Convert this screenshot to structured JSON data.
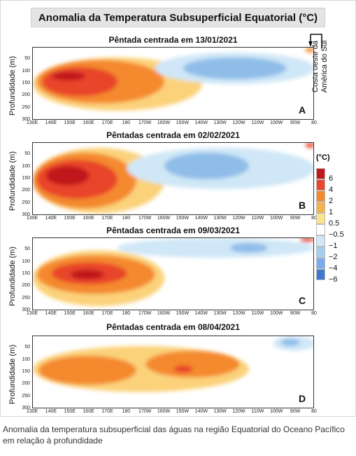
{
  "figure": {
    "title": "Anomalia da Temperatura Subsuperficial Equatorial (°C)",
    "ylabel": "Profundidade (m)",
    "coast_note_line1": "Costa oeste da",
    "coast_note_line2": "América do Sul",
    "caption": "Anomalia da temperatura subsuperficial das águas na região Equatorial do Oceano Pacífico em relação à profundidade"
  },
  "legend": {
    "unit": "(°C)",
    "labels": [
      "6",
      "4",
      "2",
      "1",
      "0.5",
      "−0.5",
      "−1",
      "−2",
      "−4",
      "−6"
    ],
    "colors": [
      "#c0181b",
      "#e8452a",
      "#f4892e",
      "#f8b24a",
      "#fbe38a",
      "#ffffff",
      "#cfe7f7",
      "#a5cdef",
      "#78acea",
      "#3f77d3"
    ]
  },
  "chart_data": [
    {
      "type": "heatmap",
      "title": "Pêntada centrada em 13/01/2021",
      "panel_letter": "A",
      "xlabel": "",
      "ylabel": "Profundidade (m)",
      "x_ticks": [
        "130E",
        "140E",
        "150E",
        "160E",
        "170E",
        "180",
        "170W",
        "160W",
        "150W",
        "140W",
        "130W",
        "120W",
        "110W",
        "100W",
        "90W",
        "80"
      ],
      "y_ticks": [
        "50",
        "100",
        "150",
        "200",
        "250",
        "300"
      ],
      "x_range": [
        "130E",
        "80"
      ],
      "y_range": [
        300,
        0
      ],
      "features": [
        {
          "type": "warm",
          "level": 1,
          "lon": [
            130,
            220
          ],
          "depth": [
            40,
            260
          ]
        },
        {
          "type": "warm",
          "level": 2,
          "lon": [
            132,
            200
          ],
          "depth": [
            50,
            230
          ]
        },
        {
          "type": "warm",
          "level": 4,
          "lon": [
            135,
            175
          ],
          "depth": [
            80,
            200
          ]
        },
        {
          "type": "warm",
          "level": 6,
          "lon": [
            140,
            158
          ],
          "depth": [
            100,
            135
          ]
        },
        {
          "type": "cold",
          "level": -1,
          "lon": [
            195,
            280
          ],
          "depth": [
            20,
            150
          ]
        },
        {
          "type": "cold",
          "level": -2,
          "lon": [
            210,
            265
          ],
          "depth": [
            40,
            130
          ]
        },
        {
          "type": "warm",
          "level": 2,
          "lon": [
            275,
            280
          ],
          "depth": [
            0,
            20
          ]
        }
      ]
    },
    {
      "type": "heatmap",
      "title": "Pêntadas centrada em 02/02/2021",
      "panel_letter": "B",
      "xlabel": "",
      "ylabel": "Profundidade (m)",
      "x_ticks": [
        "130E",
        "140E",
        "150E",
        "160E",
        "170E",
        "180",
        "170W",
        "160W",
        "150W",
        "140W",
        "130W",
        "120W",
        "110W",
        "100W",
        "90W",
        "80"
      ],
      "y_ticks": [
        "50",
        "100",
        "150",
        "200",
        "250",
        "300"
      ],
      "x_range": [
        "130E",
        "80"
      ],
      "y_range": [
        300,
        0
      ],
      "features": [
        {
          "type": "warm",
          "level": 1,
          "lon": [
            130,
            200
          ],
          "depth": [
            20,
            290
          ]
        },
        {
          "type": "warm",
          "level": 2,
          "lon": [
            130,
            185
          ],
          "depth": [
            40,
            270
          ]
        },
        {
          "type": "warm",
          "level": 4,
          "lon": [
            132,
            175
          ],
          "depth": [
            70,
            230
          ]
        },
        {
          "type": "warm",
          "level": 6,
          "lon": [
            137,
            160
          ],
          "depth": [
            95,
            175
          ]
        },
        {
          "type": "cold",
          "level": -1,
          "lon": [
            180,
            280
          ],
          "depth": [
            20,
            190
          ]
        },
        {
          "type": "cold",
          "level": -2,
          "lon": [
            200,
            245
          ],
          "depth": [
            40,
            150
          ]
        },
        {
          "type": "warm",
          "level": 4,
          "lon": [
            275,
            280
          ],
          "depth": [
            0,
            20
          ]
        }
      ]
    },
    {
      "type": "heatmap",
      "title": "Pêntadas centrada em 09/03/2021",
      "panel_letter": "C",
      "xlabel": "",
      "ylabel": "Profundidade (m)",
      "x_ticks": [
        "130E",
        "140E",
        "150E",
        "160E",
        "170E",
        "180",
        "170W",
        "160W",
        "150W",
        "140W",
        "130W",
        "120W",
        "110W",
        "100W",
        "90W",
        "80"
      ],
      "y_ticks": [
        "50",
        "100",
        "150",
        "200",
        "250",
        "300"
      ],
      "x_range": [
        "130E",
        "80"
      ],
      "y_range": [
        300,
        0
      ],
      "features": [
        {
          "type": "warm",
          "level": 1,
          "lon": [
            130,
            200
          ],
          "depth": [
            50,
            280
          ]
        },
        {
          "type": "warm",
          "level": 2,
          "lon": [
            132,
            195
          ],
          "depth": [
            70,
            230
          ]
        },
        {
          "type": "warm",
          "level": 4,
          "lon": [
            140,
            180
          ],
          "depth": [
            100,
            190
          ]
        },
        {
          "type": "warm",
          "level": 6,
          "lon": [
            150,
            168
          ],
          "depth": [
            130,
            170
          ]
        },
        {
          "type": "cold",
          "level": -1,
          "lon": [
            175,
            280
          ],
          "depth": [
            0,
            80
          ]
        },
        {
          "type": "cold",
          "level": -2,
          "lon": [
            235,
            255
          ],
          "depth": [
            20,
            60
          ]
        },
        {
          "type": "warm",
          "level": 4,
          "lon": [
            272,
            280
          ],
          "depth": [
            0,
            15
          ]
        }
      ]
    },
    {
      "type": "heatmap",
      "title": "Pêntadas centrada em 08/04/2021",
      "panel_letter": "D",
      "xlabel": "",
      "ylabel": "Profundidade (m)",
      "x_ticks": [
        "130E",
        "140E",
        "150E",
        "160E",
        "170E",
        "180",
        "170W",
        "160W",
        "150W",
        "140W",
        "130W",
        "120W",
        "110W",
        "100W",
        "90W",
        "80"
      ],
      "y_ticks": [
        "50",
        "100",
        "150",
        "200",
        "250",
        "300"
      ],
      "x_range": [
        "130E",
        "80"
      ],
      "y_range": [
        300,
        0
      ],
      "features": [
        {
          "type": "warm",
          "level": 1,
          "lon": [
            130,
            245
          ],
          "depth": [
            40,
            230
          ]
        },
        {
          "type": "warm",
          "level": 2,
          "lon": [
            133,
            185
          ],
          "depth": [
            80,
            200
          ]
        },
        {
          "type": "warm",
          "level": 2,
          "lon": [
            190,
            240
          ],
          "depth": [
            60,
            170
          ]
        },
        {
          "type": "warm",
          "level": 4,
          "lon": [
            205,
            215
          ],
          "depth": [
            120,
            150
          ]
        },
        {
          "type": "cold",
          "level": -1,
          "lon": [
            258,
            280
          ],
          "depth": [
            0,
            60
          ]
        },
        {
          "type": "cold",
          "level": -2,
          "lon": [
            262,
            272
          ],
          "depth": [
            10,
            40
          ]
        }
      ]
    }
  ]
}
